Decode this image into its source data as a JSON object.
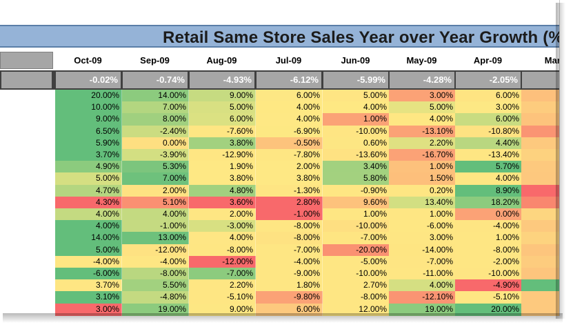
{
  "title": "Retail Same Store Sales Year over Year Growth (%",
  "months": [
    "Oct-09",
    "Sep-09",
    "Aug-09",
    "Jul-09",
    "Jun-09",
    "May-09",
    "Apr-09",
    "Mar-"
  ],
  "averages": [
    "-0.02%",
    "-0.74%",
    "-4.93%",
    "-6.12%",
    "-5.99%",
    "-4.28%",
    "-2.05%",
    ""
  ],
  "rows": [
    [
      {
        "v": "20.00%",
        "c": "#63be7b"
      },
      {
        "v": "14.00%",
        "c": "#8ccb7e"
      },
      {
        "v": "9.00%",
        "c": "#c6db81"
      },
      {
        "v": "6.00%",
        "c": "#fde784"
      },
      {
        "v": "5.00%",
        "c": "#fee583"
      },
      {
        "v": "3.00%",
        "c": "#fba276"
      },
      {
        "v": "6.00%",
        "c": "#fee482"
      },
      {
        "v": "",
        "c": "#fdc07c"
      }
    ],
    [
      {
        "v": "10.00%",
        "c": "#63be7b"
      },
      {
        "v": "7.00%",
        "c": "#b3d680"
      },
      {
        "v": "5.00%",
        "c": "#d8e082"
      },
      {
        "v": "4.00%",
        "c": "#fee883"
      },
      {
        "v": "4.00%",
        "c": "#fee883"
      },
      {
        "v": "5.00%",
        "c": "#e6e382"
      },
      {
        "v": "3.00%",
        "c": "#fde884"
      },
      {
        "v": "",
        "c": "#fdcc7e"
      }
    ],
    [
      {
        "v": "9.00%",
        "c": "#63be7b"
      },
      {
        "v": "8.00%",
        "c": "#a0d07f"
      },
      {
        "v": "6.00%",
        "c": "#dbe182"
      },
      {
        "v": "4.00%",
        "c": "#fee884"
      },
      {
        "v": "1.00%",
        "c": "#fba276"
      },
      {
        "v": "4.00%",
        "c": "#fee783"
      },
      {
        "v": "6.00%",
        "c": "#c9dc81"
      },
      {
        "v": "",
        "c": "#fdc37c"
      }
    ],
    [
      {
        "v": "6.50%",
        "c": "#63be7b"
      },
      {
        "v": "-2.40%",
        "c": "#cbdc81"
      },
      {
        "v": "-7.60%",
        "c": "#fee683"
      },
      {
        "v": "-6.90%",
        "c": "#fde883"
      },
      {
        "v": "-10.00%",
        "c": "#fee583"
      },
      {
        "v": "-13.10%",
        "c": "#fba276"
      },
      {
        "v": "-10.80%",
        "c": "#fee282"
      },
      {
        "v": "",
        "c": "#fa9473"
      }
    ],
    [
      {
        "v": "5.90%",
        "c": "#63be7b"
      },
      {
        "v": "0.00%",
        "c": "#fedf81"
      },
      {
        "v": "3.80%",
        "c": "#a2d17f"
      },
      {
        "v": "-0.50%",
        "c": "#fdc37c"
      },
      {
        "v": "0.60%",
        "c": "#fde683"
      },
      {
        "v": "2.20%",
        "c": "#dfe182"
      },
      {
        "v": "4.40%",
        "c": "#b9d780"
      },
      {
        "v": "",
        "c": "#fdc97e"
      }
    ],
    [
      {
        "v": "3.70%",
        "c": "#63be7b"
      },
      {
        "v": "-3.90%",
        "c": "#d3df82"
      },
      {
        "v": "-12.90%",
        "c": "#fee683"
      },
      {
        "v": "-7.80%",
        "c": "#fee683"
      },
      {
        "v": "-13.60%",
        "c": "#fee282"
      },
      {
        "v": "-16.70%",
        "c": "#fba276"
      },
      {
        "v": "-13.40%",
        "c": "#fee683"
      },
      {
        "v": "",
        "c": "#fdd27f"
      }
    ],
    [
      {
        "v": "4.90%",
        "c": "#8ccb7e"
      },
      {
        "v": "5.30%",
        "c": "#7cc57d"
      },
      {
        "v": "1.90%",
        "c": "#fee884"
      },
      {
        "v": "2.00%",
        "c": "#fee884"
      },
      {
        "v": "3.40%",
        "c": "#a2d17f"
      },
      {
        "v": "1.00%",
        "c": "#fdc17c"
      },
      {
        "v": "5.70%",
        "c": "#63be7b"
      },
      {
        "v": "",
        "c": "#fdc97e"
      }
    ],
    [
      {
        "v": "5.00%",
        "c": "#d5df82"
      },
      {
        "v": "7.00%",
        "c": "#6ec17c"
      },
      {
        "v": "3.80%",
        "c": "#fee884"
      },
      {
        "v": "3.80%",
        "c": "#fee884"
      },
      {
        "v": "5.80%",
        "c": "#a3d17f"
      },
      {
        "v": "1.50%",
        "c": "#fdbf7b"
      },
      {
        "v": "4.00%",
        "c": "#fee683"
      },
      {
        "v": "",
        "c": "#fdc87e"
      }
    ],
    [
      {
        "v": "4.70%",
        "c": "#b4d680"
      },
      {
        "v": "2.00%",
        "c": "#fee282"
      },
      {
        "v": "4.80%",
        "c": "#a2d17f"
      },
      {
        "v": "-1.30%",
        "c": "#fee583"
      },
      {
        "v": "-0.90%",
        "c": "#fee683"
      },
      {
        "v": "0.20%",
        "c": "#fee683"
      },
      {
        "v": "8.90%",
        "c": "#63be7b"
      },
      {
        "v": "",
        "c": "#f8696b"
      }
    ],
    [
      {
        "v": "4.30%",
        "c": "#f8696b"
      },
      {
        "v": "5.10%",
        "c": "#fa9072"
      },
      {
        "v": "3.60%",
        "c": "#f8696b"
      },
      {
        "v": "2.80%",
        "c": "#f8696b"
      },
      {
        "v": "9.60%",
        "c": "#fdc27c"
      },
      {
        "v": "13.40%",
        "c": "#d2df82"
      },
      {
        "v": "18.20%",
        "c": "#8ccb7e"
      },
      {
        "v": "",
        "c": "#f9876f"
      }
    ],
    [
      {
        "v": "4.00%",
        "c": "#c4da81"
      },
      {
        "v": "4.00%",
        "c": "#c4da81"
      },
      {
        "v": "2.00%",
        "c": "#fee683"
      },
      {
        "v": "-1.00%",
        "c": "#f8696b"
      },
      {
        "v": "1.00%",
        "c": "#fee683"
      },
      {
        "v": "1.00%",
        "c": "#fee683"
      },
      {
        "v": "0.00%",
        "c": "#fba276"
      },
      {
        "v": "",
        "c": "#fdd680"
      }
    ],
    [
      {
        "v": "4.00%",
        "c": "#63be7b"
      },
      {
        "v": "-1.00%",
        "c": "#c5da81"
      },
      {
        "v": "-3.00%",
        "c": "#d8e082"
      },
      {
        "v": "-8.00%",
        "c": "#fee683"
      },
      {
        "v": "-10.00%",
        "c": "#fedf81"
      },
      {
        "v": "-6.00%",
        "c": "#fee783"
      },
      {
        "v": "-4.00%",
        "c": "#fee583"
      },
      {
        "v": "",
        "c": "#fdc97e"
      }
    ],
    [
      {
        "v": "14.00%",
        "c": "#63be7b"
      },
      {
        "v": "13.00%",
        "c": "#6ec17c"
      },
      {
        "v": "4.00%",
        "c": "#fee684"
      },
      {
        "v": "-8.00%",
        "c": "#fee282"
      },
      {
        "v": "-7.00%",
        "c": "#fee582"
      },
      {
        "v": "3.00%",
        "c": "#fee683"
      },
      {
        "v": "1.00%",
        "c": "#fee683"
      },
      {
        "v": "",
        "c": "#fdd37f"
      }
    ],
    [
      {
        "v": "5.00%",
        "c": "#63be7b"
      },
      {
        "v": "-12.00%",
        "c": "#fee282"
      },
      {
        "v": "-8.00%",
        "c": "#fee683"
      },
      {
        "v": "-7.00%",
        "c": "#fee683"
      },
      {
        "v": "-20.00%",
        "c": "#fa9172"
      },
      {
        "v": "-14.00%",
        "c": "#fee582"
      },
      {
        "v": "-8.00%",
        "c": "#fee683"
      },
      {
        "v": "",
        "c": "#fdc57d"
      }
    ],
    [
      {
        "v": "-4.00%",
        "c": "#fee683"
      },
      {
        "v": "-4.00%",
        "c": "#fee683"
      },
      {
        "v": "-12.00%",
        "c": "#f8696b"
      },
      {
        "v": "-4.00%",
        "c": "#fee683"
      },
      {
        "v": "-5.00%",
        "c": "#fee683"
      },
      {
        "v": "-7.00%",
        "c": "#fee583"
      },
      {
        "v": "-2.00%",
        "c": "#fee683"
      },
      {
        "v": "",
        "c": "#fdcc7e"
      }
    ],
    [
      {
        "v": "-6.00%",
        "c": "#63be7b"
      },
      {
        "v": "-8.00%",
        "c": "#b9d780"
      },
      {
        "v": "-7.00%",
        "c": "#8ccb7e"
      },
      {
        "v": "-9.00%",
        "c": "#fee683"
      },
      {
        "v": "-10.00%",
        "c": "#fee683"
      },
      {
        "v": "-11.00%",
        "c": "#fee683"
      },
      {
        "v": "-10.00%",
        "c": "#fee583"
      },
      {
        "v": "",
        "c": "#fdc57d"
      }
    ],
    [
      {
        "v": "3.70%",
        "c": "#fee683"
      },
      {
        "v": "5.50%",
        "c": "#a2d17f"
      },
      {
        "v": "2.20%",
        "c": "#fee683"
      },
      {
        "v": "1.80%",
        "c": "#fee683"
      },
      {
        "v": "2.70%",
        "c": "#fee683"
      },
      {
        "v": "4.00%",
        "c": "#d5df82"
      },
      {
        "v": "-4.90%",
        "c": "#f8696b"
      },
      {
        "v": "",
        "c": "#63be7b"
      }
    ],
    [
      {
        "v": "3.10%",
        "c": "#63be7b"
      },
      {
        "v": "-4.80%",
        "c": "#c4da81"
      },
      {
        "v": "-5.10%",
        "c": "#fee683"
      },
      {
        "v": "-9.80%",
        "c": "#fba276"
      },
      {
        "v": "-8.00%",
        "c": "#fee683"
      },
      {
        "v": "-12.10%",
        "c": "#fa9473"
      },
      {
        "v": "-5.10%",
        "c": "#fee683"
      },
      {
        "v": "",
        "c": "#fdc97e"
      }
    ],
    [
      {
        "v": "3.00%",
        "c": "#f8696b"
      },
      {
        "v": "19.00%",
        "c": "#8ccb7e"
      },
      {
        "v": "9.00%",
        "c": "#fde783"
      },
      {
        "v": "6.00%",
        "c": "#fdc97e"
      },
      {
        "v": "12.00%",
        "c": "#fee683"
      },
      {
        "v": "19.00%",
        "c": "#8ccb7e"
      },
      {
        "v": "20.00%",
        "c": "#63be7b"
      },
      {
        "v": "",
        "c": "#fdc97e"
      }
    ]
  ]
}
